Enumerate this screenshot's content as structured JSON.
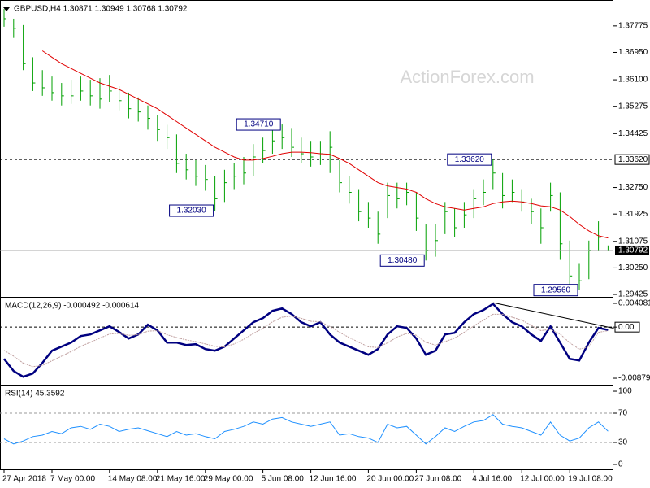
{
  "chart_data": [
    {
      "type": "ohlc",
      "title": "GBPUSD,H4  1.30871 1.30949 1.30768 1.30792",
      "watermark": "ActionForex.com",
      "color": "#00a000",
      "high": [
        1.383,
        1.38,
        1.378,
        1.368,
        1.364,
        1.362,
        1.36,
        1.361,
        1.362,
        1.361,
        1.3615,
        1.3625,
        1.359,
        1.357,
        1.3555,
        1.353,
        1.35,
        1.347,
        1.344,
        1.338,
        1.336,
        1.3345,
        1.331,
        1.333,
        1.335,
        1.337,
        1.341,
        1.343,
        1.346,
        1.3471,
        1.346,
        1.343,
        1.342,
        1.342,
        1.345,
        1.336,
        1.331,
        1.327,
        1.323,
        1.32,
        1.329,
        1.329,
        1.329,
        1.326,
        1.316,
        1.316,
        1.323,
        1.321,
        1.323,
        1.327,
        1.33,
        1.3362,
        1.332,
        1.33,
        1.327,
        1.324,
        1.321,
        1.329,
        1.326,
        1.311,
        1.304,
        1.311,
        1.317,
        1.30949
      ],
      "low": [
        1.3775,
        1.374,
        1.364,
        1.3575,
        1.356,
        1.3545,
        1.353,
        1.3535,
        1.3545,
        1.353,
        1.352,
        1.354,
        1.3515,
        1.349,
        1.348,
        1.3455,
        1.342,
        1.3395,
        1.332,
        1.33,
        1.328,
        1.3265,
        1.3203,
        1.323,
        1.327,
        1.3285,
        1.331,
        1.335,
        1.338,
        1.3395,
        1.337,
        1.335,
        1.334,
        1.3345,
        1.332,
        1.326,
        1.3225,
        1.317,
        1.315,
        1.31,
        1.318,
        1.321,
        1.322,
        1.314,
        1.3048,
        1.306,
        1.313,
        1.312,
        1.315,
        1.318,
        1.322,
        1.327,
        1.321,
        1.323,
        1.32,
        1.316,
        1.31,
        1.32,
        1.305,
        1.297,
        1.2956,
        1.299,
        1.308,
        1.30768
      ],
      "close": [
        1.38,
        1.377,
        1.366,
        1.36,
        1.3585,
        1.357,
        1.356,
        1.356,
        1.3575,
        1.356,
        1.355,
        1.3575,
        1.3545,
        1.352,
        1.351,
        1.349,
        1.3455,
        1.343,
        1.335,
        1.333,
        1.331,
        1.33,
        1.324,
        1.329,
        1.331,
        1.332,
        1.337,
        1.339,
        1.342,
        1.343,
        1.34,
        1.338,
        1.337,
        1.338,
        1.34,
        1.329,
        1.326,
        1.32,
        1.318,
        1.313,
        1.325,
        1.324,
        1.326,
        1.318,
        1.308,
        1.311,
        1.32,
        1.315,
        1.319,
        1.324,
        1.326,
        1.332,
        1.325,
        1.326,
        1.323,
        1.32,
        1.315,
        1.325,
        1.31,
        1.3,
        1.2985,
        1.308,
        1.312,
        1.30792
      ],
      "series": [
        {
          "color": "#e00000",
          "values": [
            null,
            null,
            null,
            null,
            1.37,
            1.368,
            1.366,
            1.3645,
            1.363,
            1.3615,
            1.36,
            1.359,
            1.358,
            1.3565,
            1.355,
            1.3535,
            1.352,
            1.35,
            1.348,
            1.346,
            1.344,
            1.342,
            1.34,
            1.3385,
            1.337,
            1.336,
            1.336,
            1.3365,
            1.3372,
            1.338,
            1.3385,
            1.3385,
            1.3383,
            1.338,
            1.3378,
            1.3365,
            1.335,
            1.333,
            1.331,
            1.329,
            1.328,
            1.3275,
            1.327,
            1.326,
            1.324,
            1.3225,
            1.3215,
            1.321,
            1.3205,
            1.321,
            1.3215,
            1.3225,
            1.323,
            1.3233,
            1.323,
            1.3225,
            1.3218,
            1.3215,
            1.3205,
            1.3185,
            1.316,
            1.314,
            1.3125,
            1.3118
          ]
        }
      ],
      "ylim": [
        1.2935,
        1.3853
      ],
      "yticks": [
        {
          "value": 1.37775,
          "label": "1.37775"
        },
        {
          "value": 1.3695,
          "label": "1.36950"
        },
        {
          "value": 1.361,
          "label": "1.36100"
        },
        {
          "value": 1.35275,
          "label": "1.35275"
        },
        {
          "value": 1.34425,
          "label": "1.34425"
        },
        {
          "value": 1.3275,
          "label": "1.32750"
        },
        {
          "value": 1.31925,
          "label": "1.31925"
        },
        {
          "value": 1.31075,
          "label": "1.31075"
        },
        {
          "value": 1.3025,
          "label": "1.30250"
        },
        {
          "value": 1.29425,
          "label": "1.29425"
        }
      ],
      "hline": {
        "value": 1.3362,
        "label": "1.33620"
      },
      "annotations": [
        {
          "bar": 29,
          "value": 1.3471,
          "label": "1.34710"
        },
        {
          "bar": 22,
          "value": 1.3203,
          "label": "1.32030"
        },
        {
          "bar": 44,
          "value": 1.3048,
          "label": "1.30480"
        },
        {
          "bar": 51,
          "value": 1.3362,
          "label": "1.33620"
        },
        {
          "bar": 60,
          "value": 1.2956,
          "label": "1.29560"
        }
      ]
    },
    {
      "type": "macd",
      "title": "MACD(12,26,9) -0.000492 -0.000614",
      "series": [
        {
          "color": "#000080",
          "values": [
            -0.00546,
            -0.00756,
            -0.00854,
            -0.00798,
            -0.00616,
            -0.00406,
            -0.00336,
            -0.00266,
            -0.00154,
            -0.00126,
            -0.00056,
            0.00014,
            -0.00084,
            -0.00196,
            -0.00126,
            0.00042,
            -0.00056,
            -0.00266,
            -0.00266,
            -0.00308,
            -0.00294,
            -0.00378,
            -0.00406,
            -0.00336,
            -0.00196,
            -0.00056,
            0.00084,
            0.00154,
            0.0028,
            0.00322,
            0.00224,
            0.00084,
            0.00014,
            0.00084,
            -0.00126,
            -0.00266,
            -0.00336,
            -0.00406,
            -0.00476,
            -0.00378,
            -0.00126,
            0.00014,
            -0.00014,
            -0.00196,
            -0.00476,
            -0.00406,
            -0.00126,
            -0.00098,
            0.00084,
            0.00224,
            0.00294,
            0.004,
            0.00224,
            0.00084,
            0.00014,
            -0.00126,
            -0.00238,
            0.00014,
            -0.00266,
            -0.00546,
            -0.00574,
            -0.00266,
            -0.00014,
            -0.000492
          ]
        },
        {
          "color": "#c0a0a0",
          "values": [
            -0.004,
            -0.005,
            -0.0062,
            -0.0068,
            -0.0066,
            -0.0058,
            -0.005,
            -0.0042,
            -0.0033,
            -0.0026,
            -0.0019,
            -0.0012,
            -0.0011,
            -0.0014,
            -0.0013,
            -0.0007,
            -0.0006,
            -0.0013,
            -0.0018,
            -0.0022,
            -0.0025,
            -0.0029,
            -0.0033,
            -0.0034,
            -0.0029,
            -0.0021,
            -0.0011,
            -0.0002,
            0.0009,
            0.0017,
            0.0019,
            0.0015,
            0.001,
            0.0009,
            0.0001,
            -0.0009,
            -0.0018,
            -0.0026,
            -0.0034,
            -0.0035,
            -0.0027,
            -0.0017,
            -0.0011,
            -0.0014,
            -0.0026,
            -0.0031,
            -0.0025,
            -0.0019,
            -0.0009,
            0.0002,
            0.0012,
            0.0022,
            0.0022,
            0.0017,
            0.0012,
            0.0003,
            -0.0006,
            -0.0004,
            -0.0012,
            -0.0027,
            -0.0038,
            -0.0034,
            -0.0009,
            -0.000614
          ]
        }
      ],
      "trendline": [
        {
          "bar": 51,
          "value": 0.0042
        },
        {
          "bar": 63.6,
          "value": -0.0002
        }
      ],
      "ylim": [
        -0.00991,
        0.00492
      ],
      "yticks": [
        0.004081,
        {
          "value": 0,
          "label": "0.00"
        },
        -0.008794
      ]
    },
    {
      "type": "rsi",
      "title": "RSI(14) 45.3592",
      "color": "#1e90ff",
      "values": [
        35,
        28,
        32,
        38,
        40,
        45,
        42,
        50,
        52,
        48,
        55,
        52,
        45,
        48,
        50,
        46,
        42,
        38,
        45,
        40,
        42,
        38,
        35,
        45,
        48,
        52,
        58,
        55,
        62,
        64,
        58,
        55,
        52,
        55,
        58,
        40,
        42,
        38,
        36,
        30,
        55,
        50,
        52,
        40,
        28,
        38,
        50,
        45,
        52,
        58,
        60,
        68,
        55,
        52,
        50,
        45,
        40,
        58,
        40,
        32,
        36,
        50,
        58,
        45.3592
      ],
      "levels": [
        70,
        30
      ],
      "ylim": [
        -7.8,
        106.7
      ],
      "yticks": [
        100,
        70,
        30,
        0
      ],
      "xticks": [
        {
          "value": 0,
          "label": "27 Apr 2018"
        },
        {
          "value": 5,
          "label": "7 May 00:00"
        },
        {
          "value": 11,
          "label": "14 May 08:00"
        },
        {
          "value": 16,
          "label": "21 May 16:00"
        },
        {
          "value": 21,
          "label": "29 May 00:00"
        },
        {
          "value": 27,
          "label": "5 Jun 08:00"
        },
        {
          "value": 32,
          "label": "12 Jun 16:00"
        },
        {
          "value": 38,
          "label": "20 Jun 00:00"
        },
        {
          "value": 43,
          "label": "27 Jun 08:00"
        },
        {
          "value": 49,
          "label": "4 Jul 16:00"
        },
        {
          "value": 54,
          "label": "12 Jul 00:00"
        },
        {
          "value": 59,
          "label": "19 Jul 08:00"
        }
      ]
    }
  ]
}
